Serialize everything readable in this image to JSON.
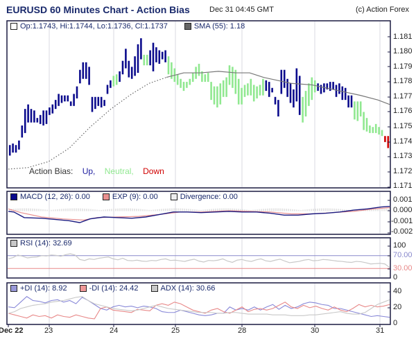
{
  "header": {
    "title": "EURUSD 60 Minutes Chart - Action Bias",
    "datetime": "Dec 31 04:45 GMT",
    "copyright": "(c) Action Forex"
  },
  "main_pane": {
    "ohlc_label": "Op:1.1743, Hi:1.1744, Lo:1.1736, Cl:1.1737",
    "sma_label": "SMA (55): 1.18",
    "y_ticks": [
      "1.181",
      "1.180",
      "1.179",
      "1.178",
      "1.177",
      "1.176",
      "1.175",
      "1.174",
      "1.173",
      "1.172",
      "1.171"
    ],
    "action_bias": {
      "label": "Action Bias:",
      "up": "Up,",
      "neutral": "Neutral,",
      "down": "Down"
    }
  },
  "macd_pane": {
    "macd_label": "MACD (12, 26): 0.00",
    "exp_label": "EXP (9): 0.00",
    "divergence_label": "Divergence: 0.00",
    "y_ticks": [
      "0.001",
      "0.000",
      "-0.001",
      "-0.002"
    ]
  },
  "rsi_pane": {
    "rsi_label": "RSI (14): 32.69",
    "y_ticks": [
      "100",
      "70.00",
      "30.00",
      "0"
    ]
  },
  "di_pane": {
    "plus_di_label": "+DI (14): 8.92",
    "minus_di_label": "-DI (14): 24.42",
    "adx_label": "ADX (14): 30.66",
    "y_ticks": [
      "40",
      "20",
      "0"
    ]
  },
  "x_axis": {
    "labels": [
      "Dec 22",
      "23",
      "24",
      "25",
      "28",
      "30",
      "31"
    ]
  },
  "colors": {
    "up": "#0a0a8c",
    "neutral": "#90e890",
    "down": "#d00000",
    "sma": "#777777",
    "macd": "#1a1a80",
    "exp": "#e89090",
    "rsi": "#c8c8c8",
    "plus_di": "#8888d8",
    "minus_di": "#e88888",
    "adx": "#c8c8c8",
    "overbought": "#8888cc",
    "oversold": "#e88888"
  },
  "chart_data": [
    {
      "type": "ohlc",
      "title": "EURUSD 60 Minutes Chart - Action Bias",
      "xlabel": "",
      "ylabel": "",
      "ylim": [
        1.171,
        1.1815
      ],
      "x_ticks": [
        "Dec 22",
        "23",
        "24",
        "25",
        "28",
        "30",
        "31"
      ],
      "last_bar": {
        "open": 1.1743,
        "high": 1.1744,
        "low": 1.1736,
        "close": 1.1737
      },
      "bars_hl": [
        [
          1.1738,
          1.1731,
          "up"
        ],
        [
          1.1739,
          1.1733,
          "up"
        ],
        [
          1.1738,
          1.1733,
          "up"
        ],
        [
          1.1741,
          1.1735,
          "up"
        ],
        [
          1.1751,
          1.1743,
          "up"
        ],
        [
          1.1762,
          1.1746,
          "up"
        ],
        [
          1.1765,
          1.1753,
          "up"
        ],
        [
          1.1762,
          1.1753,
          "up"
        ],
        [
          1.1761,
          1.1753,
          "up"
        ],
        [
          1.1756,
          1.1753,
          "up"
        ],
        [
          1.1758,
          1.1752,
          "up"
        ],
        [
          1.1761,
          1.1751,
          "up"
        ],
        [
          1.1761,
          1.1752,
          "up"
        ],
        [
          1.1763,
          1.1758,
          "up"
        ],
        [
          1.1765,
          1.1759,
          "up"
        ],
        [
          1.1768,
          1.1762,
          "up"
        ],
        [
          1.1772,
          1.1764,
          "up"
        ],
        [
          1.1771,
          1.1766,
          "up"
        ],
        [
          1.1771,
          1.1767,
          "up"
        ],
        [
          1.1771,
          1.1767,
          "up"
        ],
        [
          1.1767,
          1.1764,
          "up"
        ],
        [
          1.1772,
          1.1764,
          "up"
        ],
        [
          1.1777,
          1.1769,
          "up"
        ],
        [
          1.1788,
          1.1779,
          "up"
        ],
        [
          1.1793,
          1.1782,
          "up"
        ],
        [
          1.1793,
          1.1782,
          "up"
        ],
        [
          1.179,
          1.1778,
          "up"
        ],
        [
          1.177,
          1.176,
          "up"
        ],
        [
          1.177,
          1.1762,
          "up"
        ],
        [
          1.177,
          1.1764,
          "up"
        ],
        [
          1.177,
          1.1763,
          "up"
        ],
        [
          1.1768,
          1.1764,
          "up"
        ],
        [
          1.1778,
          1.1772,
          "up"
        ],
        [
          1.1781,
          1.1776,
          "up"
        ],
        [
          1.1784,
          1.1777,
          "neutral"
        ],
        [
          1.1785,
          1.1778,
          "neutral"
        ],
        [
          1.1787,
          1.178,
          "up"
        ],
        [
          1.1794,
          1.1785,
          "up"
        ],
        [
          1.1802,
          1.1789,
          "up"
        ],
        [
          1.1794,
          1.1783,
          "up"
        ],
        [
          1.179,
          1.1782,
          "up"
        ],
        [
          1.1797,
          1.1784,
          "up"
        ],
        [
          1.1805,
          1.1786,
          "up"
        ],
        [
          1.1809,
          1.1795,
          "up"
        ],
        [
          1.1798,
          1.1791,
          "neutral"
        ],
        [
          1.1798,
          1.1791,
          "neutral"
        ],
        [
          1.1801,
          1.1791,
          "up"
        ],
        [
          1.1806,
          1.1787,
          "up"
        ],
        [
          1.1803,
          1.1793,
          "up"
        ],
        [
          1.1801,
          1.1792,
          "up"
        ],
        [
          1.18,
          1.1795,
          "up"
        ],
        [
          1.1801,
          1.1793,
          "up"
        ],
        [
          1.1797,
          1.1785,
          "neutral"
        ],
        [
          1.1793,
          1.1782,
          "neutral"
        ],
        [
          1.1789,
          1.178,
          "neutral"
        ],
        [
          1.1785,
          1.1778,
          "neutral"
        ],
        [
          1.1782,
          1.1776,
          "neutral"
        ],
        [
          1.178,
          1.1774,
          "neutral"
        ],
        [
          1.178,
          1.1776,
          "neutral"
        ],
        [
          1.1782,
          1.1778,
          "neutral"
        ],
        [
          1.1786,
          1.178,
          "neutral"
        ],
        [
          1.179,
          1.1782,
          "neutral"
        ],
        [
          1.1792,
          1.1784,
          "neutral"
        ],
        [
          1.1787,
          1.178,
          "neutral"
        ],
        [
          1.1785,
          1.178,
          "neutral"
        ],
        [
          1.1786,
          1.178,
          "neutral"
        ],
        [
          1.178,
          1.1768,
          "neutral"
        ],
        [
          1.1777,
          1.1765,
          "neutral"
        ],
        [
          1.1777,
          1.1763,
          "neutral"
        ],
        [
          1.1779,
          1.1765,
          "neutral"
        ],
        [
          1.1781,
          1.177,
          "neutral"
        ],
        [
          1.1783,
          1.177,
          "neutral"
        ],
        [
          1.1791,
          1.1778,
          "neutral"
        ],
        [
          1.179,
          1.1776,
          "neutral"
        ],
        [
          1.1788,
          1.1772,
          "neutral"
        ],
        [
          1.1782,
          1.1765,
          "neutral"
        ],
        [
          1.1776,
          1.1765,
          "neutral"
        ],
        [
          1.1778,
          1.177,
          "neutral"
        ],
        [
          1.1779,
          1.1771,
          "neutral"
        ],
        [
          1.1782,
          1.1771,
          "neutral"
        ],
        [
          1.1778,
          1.1767,
          "neutral"
        ],
        [
          1.1777,
          1.1769,
          "neutral"
        ],
        [
          1.1778,
          1.1771,
          "neutral"
        ],
        [
          1.1782,
          1.1771,
          "neutral"
        ],
        [
          1.1781,
          1.1774,
          "up"
        ],
        [
          1.178,
          1.177,
          "up"
        ],
        [
          1.1776,
          1.1773,
          "up"
        ],
        [
          1.177,
          1.1765,
          "up"
        ],
        [
          1.1768,
          1.1757,
          "up"
        ],
        [
          1.1788,
          1.1772,
          "up"
        ],
        [
          1.1788,
          1.1776,
          "up"
        ],
        [
          1.1782,
          1.177,
          "up"
        ],
        [
          1.1779,
          1.1766,
          "up"
        ],
        [
          1.1775,
          1.1763,
          "up"
        ],
        [
          1.1789,
          1.1767,
          "up"
        ],
        [
          1.1784,
          1.1758,
          "up"
        ],
        [
          1.177,
          1.1753,
          "neutral"
        ],
        [
          1.1774,
          1.1757,
          "neutral"
        ],
        [
          1.1779,
          1.1764,
          "neutral"
        ],
        [
          1.1783,
          1.1768,
          "neutral"
        ],
        [
          1.1781,
          1.1773,
          "neutral"
        ],
        [
          1.1779,
          1.1774,
          "up"
        ],
        [
          1.1778,
          1.1772,
          "up"
        ],
        [
          1.1779,
          1.1773,
          "up"
        ],
        [
          1.1779,
          1.1775,
          "up"
        ],
        [
          1.178,
          1.1774,
          "up"
        ],
        [
          1.178,
          1.1775,
          "up"
        ],
        [
          1.1778,
          1.177,
          "up"
        ],
        [
          1.1779,
          1.1772,
          "up"
        ],
        [
          1.1777,
          1.1768,
          "up"
        ],
        [
          1.1776,
          1.1768,
          "up"
        ],
        [
          1.1771,
          1.1763,
          "up"
        ],
        [
          1.1771,
          1.1763,
          "up"
        ],
        [
          1.1767,
          1.1755,
          "neutral"
        ],
        [
          1.1767,
          1.1754,
          "neutral"
        ],
        [
          1.1767,
          1.1757,
          "neutral"
        ],
        [
          1.176,
          1.1748,
          "neutral"
        ],
        [
          1.1756,
          1.1747,
          "neutral"
        ],
        [
          1.1751,
          1.1746,
          "neutral"
        ],
        [
          1.175,
          1.1746,
          "neutral"
        ],
        [
          1.1752,
          1.1746,
          "neutral"
        ],
        [
          1.175,
          1.1745,
          "neutral"
        ],
        [
          1.1748,
          1.1744,
          "neutral"
        ],
        [
          1.1744,
          1.174,
          "down"
        ],
        [
          1.1744,
          1.1736,
          "down"
        ]
      ],
      "series": [
        {
          "name": "SMA (55)",
          "last_value": 1.18
        }
      ]
    },
    {
      "type": "line",
      "title": "MACD",
      "ylim": [
        -0.002,
        0.0015
      ],
      "y_ticks": [
        0.001,
        0.0,
        -0.001,
        -0.002
      ],
      "series": [
        {
          "name": "MACD (12, 26)",
          "last_value": 0.0
        },
        {
          "name": "EXP (9)",
          "last_value": 0.0
        },
        {
          "name": "Divergence",
          "last_value": 0.0
        }
      ]
    },
    {
      "type": "line",
      "title": "RSI",
      "ylim": [
        0,
        100
      ],
      "y_ticks": [
        100,
        70,
        30,
        0
      ],
      "series": [
        {
          "name": "RSI (14)",
          "last_value": 32.69
        }
      ]
    },
    {
      "type": "line",
      "title": "DMI / ADX",
      "ylim": [
        0,
        45
      ],
      "y_ticks": [
        40,
        20,
        0
      ],
      "series": [
        {
          "name": "+DI (14)",
          "last_value": 8.92
        },
        {
          "name": "-DI (14)",
          "last_value": 24.42
        },
        {
          "name": "ADX (14)",
          "last_value": 30.66
        }
      ]
    }
  ]
}
